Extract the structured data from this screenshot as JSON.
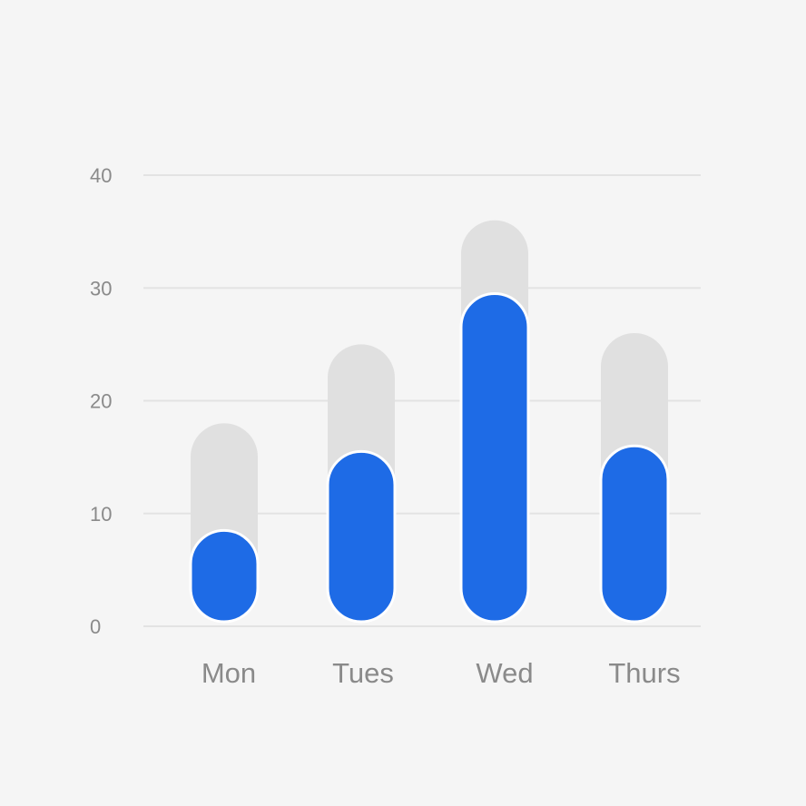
{
  "colors": {
    "background": "#f5f5f5",
    "primary_bar": "#1e6be6",
    "secondary_bar": "#e0e0e0",
    "gridline": "#e3e3e3",
    "tick_text": "#8a8a8a"
  },
  "chart_data": {
    "type": "bar",
    "title": "",
    "xlabel": "",
    "ylabel": "",
    "categories": [
      "Mon",
      "Tues",
      "Wed",
      "Thurs"
    ],
    "series": [
      {
        "values": [
          8.5,
          15.5,
          29.5,
          16
        ]
      },
      {
        "values": [
          18,
          25,
          36,
          26
        ]
      }
    ],
    "ylim": [
      0,
      40
    ],
    "yticks": [
      "0",
      "10",
      "20",
      "30",
      "40"
    ],
    "grid": true,
    "legend": "none"
  }
}
